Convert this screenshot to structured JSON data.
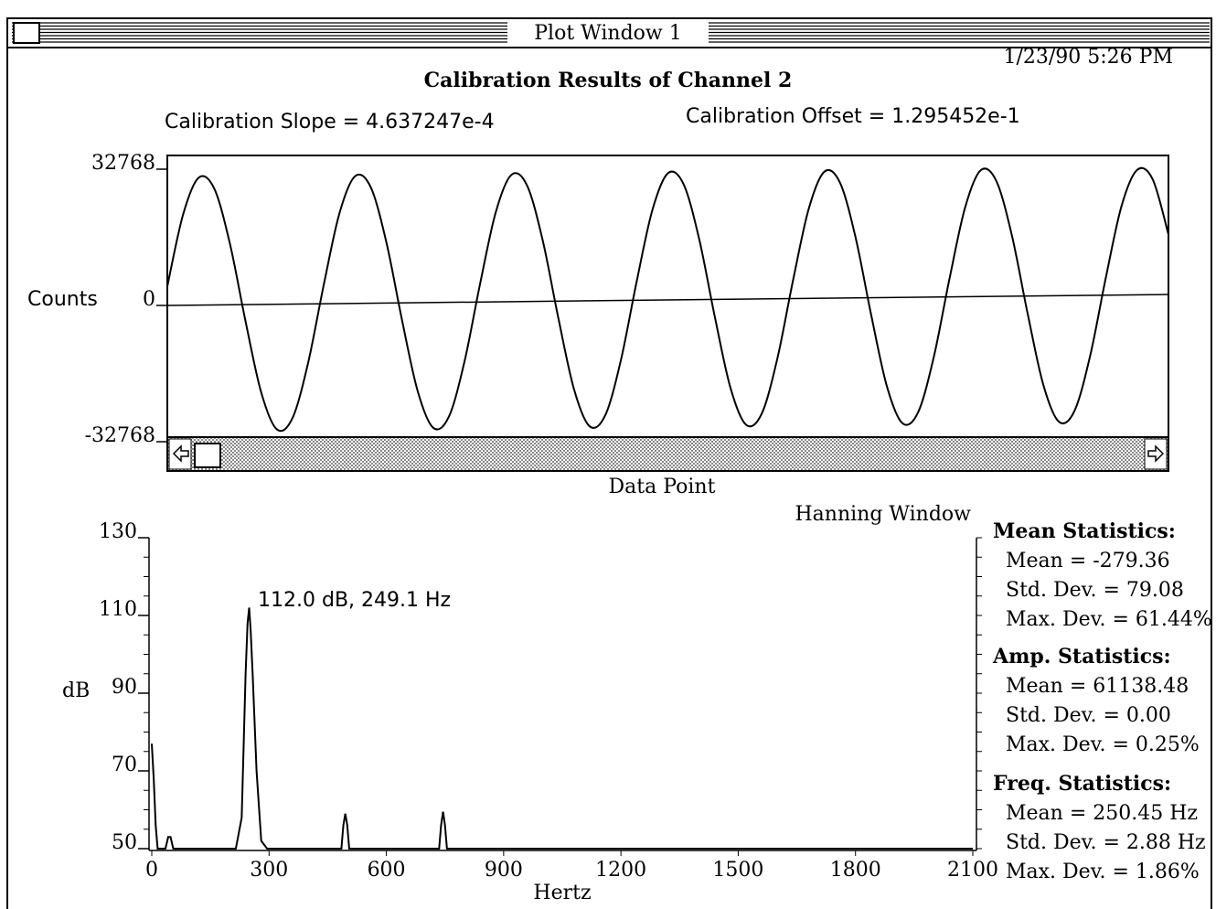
{
  "window": {
    "title": "Plot Window 1",
    "timestamp": "1/23/90  5:26 PM"
  },
  "chart_data": [
    {
      "type": "line",
      "title": "Calibration Results of Channel 2",
      "annotations": [
        "Calibration Slope =  4.637247e-4",
        "Calibration Offset =  1.295452e-1"
      ],
      "y_label": "Counts",
      "x_label": "Data Point",
      "color": "#000000",
      "ylim": [
        -32768,
        32768
      ],
      "yticks": [
        -32768,
        0,
        32768
      ],
      "values": [
        4581,
        21742,
        30710,
        28097,
        14889,
        -3801,
        -20890,
        -29786,
        -27101,
        -13821,
        4941,
        22102,
        31070,
        28457,
        15249,
        -3441,
        -20530,
        -29426,
        -26741,
        -13461,
        5301,
        22462,
        31430,
        28817,
        15609,
        -3081,
        -20170,
        -29066,
        -26381,
        -13101,
        5661,
        22822,
        31790,
        29177,
        15969,
        -2721,
        -19810,
        -28706,
        -26021,
        -12741,
        6021,
        23182,
        32150,
        29537,
        16329,
        -2361,
        -19450,
        -28346,
        -25661,
        -12381,
        6381,
        23542,
        32510,
        29897,
        16689,
        -2001,
        -19090,
        -27986,
        -25301,
        -12021,
        6741,
        23902,
        32600,
        30257,
        17049
      ]
    },
    {
      "type": "line",
      "title": "Hanning Window",
      "annotations": [
        "112.0 dB, 249.1 Hz"
      ],
      "y_label": "dB",
      "x_label": "Hertz",
      "color": "#000000",
      "xlim": [
        0,
        2100
      ],
      "xticks": [
        0,
        300,
        600,
        900,
        1200,
        1500,
        1800,
        2100
      ],
      "ylim": [
        50,
        130
      ],
      "yticks": [
        50,
        70,
        90,
        110,
        130
      ],
      "x": [
        0,
        5,
        10,
        15,
        35,
        42,
        48,
        55,
        200,
        215,
        230,
        240,
        245,
        249.1,
        253,
        258,
        268,
        280,
        295,
        470,
        485,
        490,
        495,
        500,
        505,
        520,
        720,
        735,
        740,
        745,
        750,
        755,
        770,
        2100
      ],
      "values": [
        77,
        68,
        56,
        50,
        50,
        53,
        53,
        50,
        50,
        50,
        58,
        95,
        108,
        112,
        106,
        95,
        70,
        52,
        50,
        50,
        50,
        56,
        59,
        56,
        50,
        50,
        50,
        50,
        56,
        59.5,
        56,
        50,
        50,
        50
      ]
    }
  ],
  "statistics": [
    {
      "title": "Mean Statistics:",
      "lines": [
        "Mean = -279.36",
        "Std. Dev. = 79.08",
        "Max. Dev. = 61.44%"
      ]
    },
    {
      "title": "Amp. Statistics:",
      "lines": [
        "Mean = 61138.48",
        "Std. Dev. = 0.00",
        "Max. Dev. = 0.25%"
      ]
    },
    {
      "title": "Freq. Statistics:",
      "lines": [
        "Mean = 250.45 Hz",
        "Std. Dev. = 2.88 Hz",
        "Max. Dev. = 1.86%"
      ]
    }
  ]
}
